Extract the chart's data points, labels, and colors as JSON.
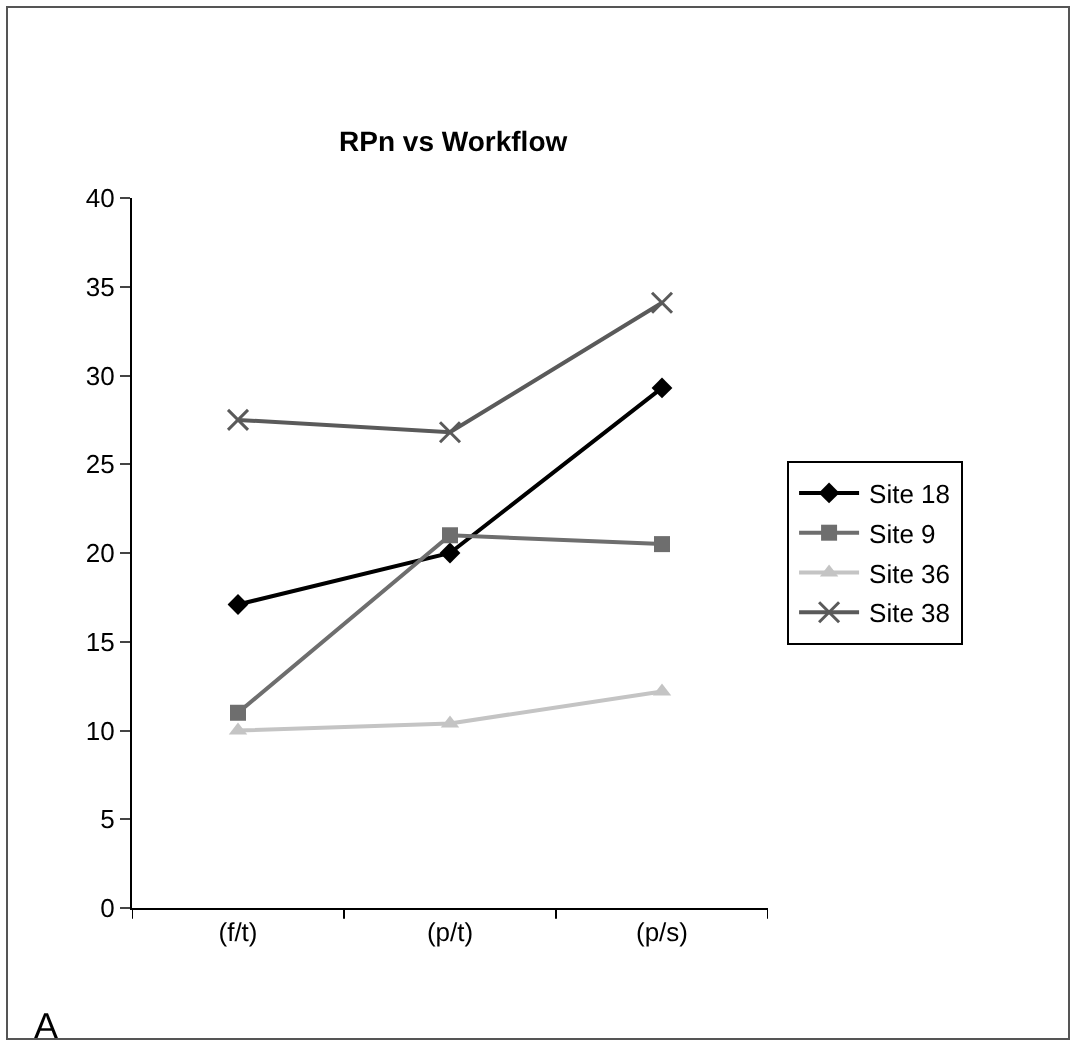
{
  "chart_data": {
    "type": "line",
    "title": "RPn vs Workflow",
    "categories": [
      "(f/t)",
      "(p/t)",
      "(p/s)"
    ],
    "series": [
      {
        "name": "Site 18",
        "color": "#000000",
        "marker": "diamond",
        "values": [
          17.1,
          20,
          29.3
        ]
      },
      {
        "name": "Site 9",
        "color": "#6e6e6e",
        "marker": "square",
        "values": [
          11,
          21,
          20.5
        ]
      },
      {
        "name": "Site 36",
        "color": "#c4c4c4",
        "marker": "triangle",
        "values": [
          10,
          10.4,
          12.2
        ]
      },
      {
        "name": "Site 38",
        "color": "#5a5a5a",
        "marker": "cross",
        "values": [
          27.5,
          26.8,
          34.1
        ]
      }
    ],
    "ylim": [
      0,
      40
    ],
    "yticks": [
      0,
      5,
      10,
      15,
      20,
      25,
      30,
      35,
      40
    ],
    "grid": false,
    "legend": "right",
    "line_style": "solid",
    "annotations": [
      "A"
    ]
  }
}
